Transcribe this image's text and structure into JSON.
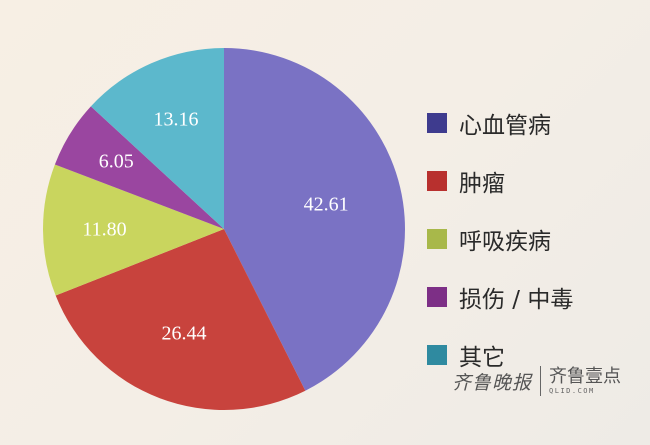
{
  "chart_data": {
    "type": "pie",
    "title": "",
    "categories": [
      "心血管病",
      "肿瘤",
      "呼吸疾病",
      "损伤 / 中毒",
      "其它"
    ],
    "values": [
      42.61,
      26.44,
      11.8,
      6.05,
      13.16
    ],
    "labels": [
      "42.61",
      "26.44",
      "11.80",
      "6.05",
      "13.16"
    ],
    "colors": [
      "#7a72c4",
      "#c8433d",
      "#c9d55e",
      "#9a46a0",
      "#5cb8cc"
    ],
    "start_angle": "12 o'clock, clockwise",
    "legend_position": "right"
  },
  "legend": {
    "items": [
      {
        "label": "心血管病",
        "color": "#3e3b8e"
      },
      {
        "label": "肿瘤",
        "color": "#b8302e"
      },
      {
        "label": "呼吸疾病",
        "color": "#a8b84a"
      },
      {
        "label": "损伤 / 中毒",
        "color": "#7d2f86"
      },
      {
        "label": "其它",
        "color": "#2f8aa0"
      }
    ]
  },
  "watermark": {
    "left": "齐鲁晚报",
    "right": "齐鲁壹点",
    "url": "QLID.COM"
  }
}
